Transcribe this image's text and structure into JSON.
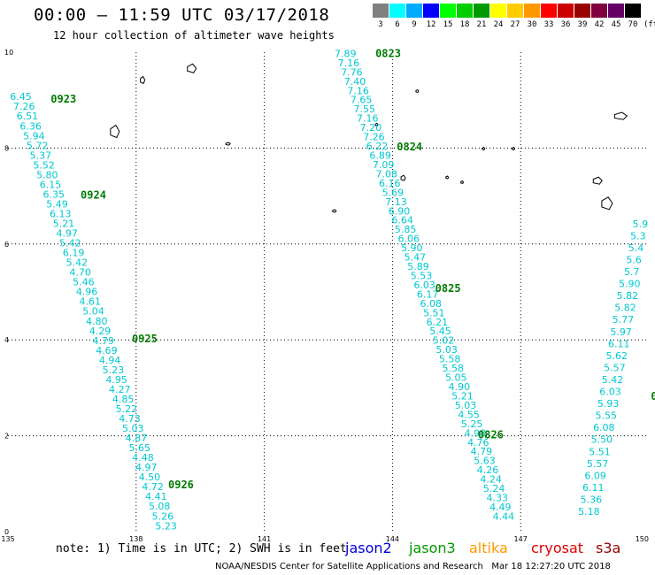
{
  "header": {
    "title": "00:00 – 11:59 UTC 03/17/2018",
    "subtitle": "12 hour collection of altimeter wave heights"
  },
  "color_scale": {
    "unit": "(ft)",
    "bins": [
      {
        "label": "3",
        "color": "#808080"
      },
      {
        "label": "6",
        "color": "#00ffff"
      },
      {
        "label": "9",
        "color": "#00aaff"
      },
      {
        "label": "12",
        "color": "#0000ff"
      },
      {
        "label": "15",
        "color": "#00ff00"
      },
      {
        "label": "18",
        "color": "#00cc00"
      },
      {
        "label": "21",
        "color": "#009900"
      },
      {
        "label": "24",
        "color": "#ffff00"
      },
      {
        "label": "27",
        "color": "#ffcc00"
      },
      {
        "label": "30",
        "color": "#ff9900"
      },
      {
        "label": "33",
        "color": "#ff0000"
      },
      {
        "label": "36",
        "color": "#cc0000"
      },
      {
        "label": "39",
        "color": "#990000"
      },
      {
        "label": "42",
        "color": "#800040"
      },
      {
        "label": "45",
        "color": "#660066"
      },
      {
        "label": "70",
        "color": "#000000"
      }
    ]
  },
  "map": {
    "lon_range": [
      135,
      150
    ],
    "lat_range": [
      0,
      10
    ],
    "lon_ticks": [
      "135",
      "138",
      "141",
      "144",
      "147",
      "150"
    ],
    "lat_ticks": [
      "0",
      "2",
      "4",
      "6",
      "8",
      "10"
    ],
    "tracks": [
      {
        "name": "track-west",
        "start": [
          135.3,
          9.0
        ],
        "end": [
          138.7,
          0.05
        ],
        "values": [
          "6.45",
          "7.26",
          "6.51",
          "6.36",
          "5.94",
          "5.72",
          "5.37",
          "5.52",
          "5.80",
          "6.15",
          "6.35",
          "5.49",
          "6.13",
          "5.21",
          "4.97",
          "5.42",
          "6.19",
          "5.42",
          "4.70",
          "5.46",
          "4.96",
          "4.61",
          "5.04",
          "4.80",
          "4.29",
          "4.79",
          "4.69",
          "4.94",
          "5.23",
          "4.95",
          "4.27",
          "4.85",
          "5.22",
          "4.73",
          "5.03",
          "4.87",
          "5.65",
          "4.48",
          "4.97",
          "4.50",
          "4.72",
          "4.41",
          "5.08",
          "5.26",
          "5.23"
        ],
        "times": [
          {
            "label": "0923",
            "lon": 136.0,
            "lat": 8.95
          },
          {
            "label": "0924",
            "lon": 136.7,
            "lat": 6.95
          },
          {
            "label": "0925",
            "lon": 137.9,
            "lat": 3.95
          },
          {
            "label": "0926",
            "lon": 138.75,
            "lat": 0.9
          }
        ]
      },
      {
        "name": "track-middle",
        "start": [
          142.9,
          9.9
        ],
        "end": [
          146.6,
          0.25
        ],
        "values": [
          "7.89",
          "7.16",
          "7.76",
          "7.40",
          "7.16",
          "7.65",
          "7.55",
          "7.16",
          "7.20",
          "7.26",
          "6.22",
          "6.89",
          "7.09",
          "7.08",
          "6.16",
          "5.69",
          "7.13",
          "6.90",
          "6.64",
          "5.85",
          "6.06",
          "5.90",
          "5.47",
          "5.89",
          "5.53",
          "6.03",
          "6.17",
          "6.08",
          "5.51",
          "6.21",
          "5.45",
          "5.02",
          "5.03",
          "5.58",
          "5.58",
          "5.05",
          "4.90",
          "5.21",
          "5.03",
          "4.55",
          "5.25",
          "4.98",
          "4.76",
          "4.79",
          "5.63",
          "4.26",
          "4.24",
          "5.24",
          "4.33",
          "4.49",
          "4.44"
        ],
        "times": [
          {
            "label": "0823",
            "lon": 143.6,
            "lat": 9.9
          },
          {
            "label": "0824",
            "lon": 144.1,
            "lat": 7.95
          },
          {
            "label": "0825",
            "lon": 145.0,
            "lat": 5.0
          },
          {
            "label": "0826",
            "lon": 146.0,
            "lat": 1.95
          }
        ]
      },
      {
        "name": "track-east",
        "start": [
          149.8,
          6.35
        ],
        "end": [
          148.6,
          0.35
        ],
        "values": [
          "5.9",
          "5.3",
          "5.4",
          "5.6",
          "5.7",
          "5.90",
          "5.82",
          "5.82",
          "5.77",
          "5.97",
          "6.11",
          "5.62",
          "5.57",
          "5.42",
          "6.03",
          "5.93",
          "5.55",
          "6.08",
          "5.50",
          "5.51",
          "5.57",
          "6.09",
          "6.11",
          "5.36",
          "5.18"
        ],
        "times": [
          {
            "label": "0",
            "lon": 150.05,
            "lat": 2.75
          }
        ]
      }
    ],
    "islands": [
      {
        "lon": 138.1,
        "lat": 9.45,
        "w": 5,
        "h": 8
      },
      {
        "lon": 139.2,
        "lat": 9.7,
        "w": 10,
        "h": 10
      },
      {
        "lon": 137.4,
        "lat": 8.4,
        "w": 10,
        "h": 14
      },
      {
        "lon": 140.1,
        "lat": 8.1,
        "w": 5,
        "h": 3
      },
      {
        "lon": 144.55,
        "lat": 9.2,
        "w": 3,
        "h": 3
      },
      {
        "lon": 143.6,
        "lat": 8.5,
        "w": 3,
        "h": 3
      },
      {
        "lon": 144.2,
        "lat": 7.4,
        "w": 5,
        "h": 6
      },
      {
        "lon": 145.25,
        "lat": 7.4,
        "w": 3,
        "h": 3
      },
      {
        "lon": 145.6,
        "lat": 7.3,
        "w": 3,
        "h": 3
      },
      {
        "lon": 146.1,
        "lat": 8.0,
        "w": 3,
        "h": 3
      },
      {
        "lon": 146.8,
        "lat": 8.0,
        "w": 3,
        "h": 3
      },
      {
        "lon": 149.2,
        "lat": 8.7,
        "w": 14,
        "h": 8
      },
      {
        "lon": 148.7,
        "lat": 7.35,
        "w": 10,
        "h": 8
      },
      {
        "lon": 142.6,
        "lat": 6.7,
        "w": 4,
        "h": 3
      },
      {
        "lon": 148.9,
        "lat": 6.9,
        "w": 12,
        "h": 14
      }
    ]
  },
  "footer": {
    "note": "note: 1) Time is in UTC; 2) SWH is in feet",
    "legend": [
      {
        "label": "jason2",
        "color": "#0000dd"
      },
      {
        "label": "jason3",
        "color": "#009900"
      },
      {
        "label": "altika",
        "color": "#ff9900"
      },
      {
        "label": "cryosat",
        "color": "#dd0000"
      },
      {
        "label": "s3a",
        "color": "#990000"
      }
    ],
    "credit": "NOAA/NESDIS Center for Satellite Applications and Research   Mar 18 12:27:20 UTC 2018"
  }
}
